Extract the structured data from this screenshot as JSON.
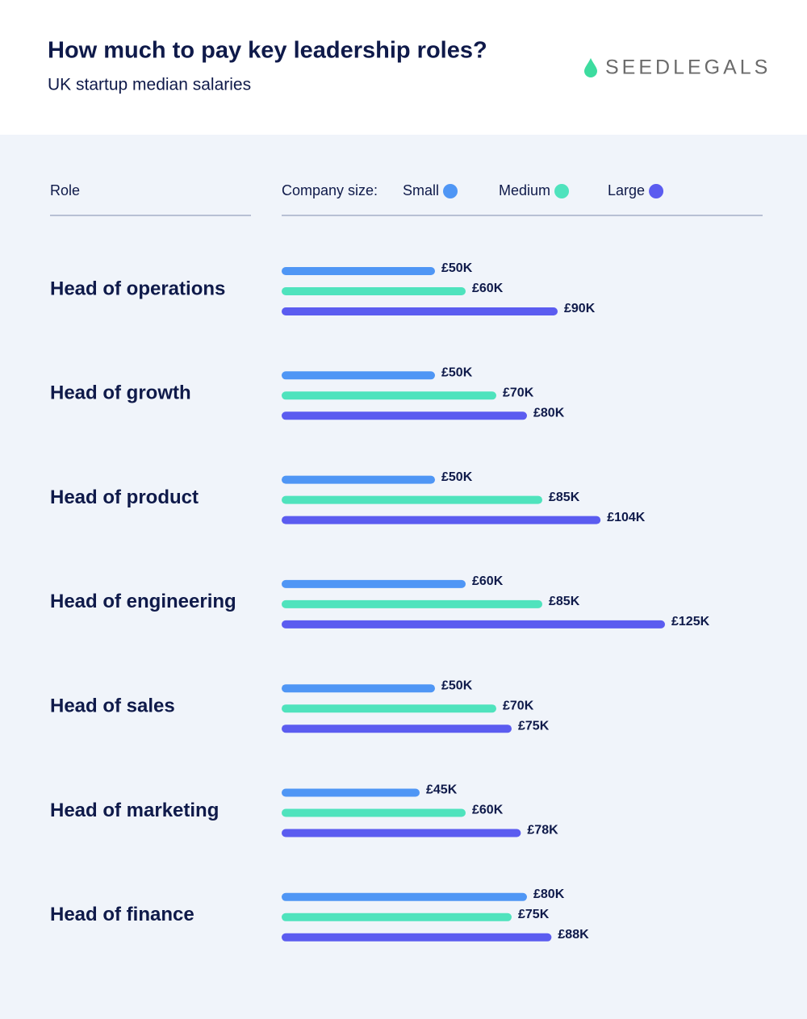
{
  "chart_data": {
    "type": "bar",
    "orientation": "horizontal",
    "title": "How much to pay key leadership roles?",
    "subtitle": "UK startup median salaries",
    "logo": "SEEDLEGALS",
    "category_header": "Role",
    "legend_title": "Company size:",
    "categories": [
      "Head of operations",
      "Head of growth",
      "Head of product",
      "Head of engineering",
      "Head of sales",
      "Head of marketing",
      "Head of finance"
    ],
    "series": [
      {
        "name": "Small",
        "color": "#4f96f5",
        "values": [
          50,
          50,
          50,
          60,
          50,
          45,
          80
        ],
        "value_labels": [
          "£50K",
          "£50K",
          "£50K",
          "£60K",
          "£50K",
          "£45K",
          "£80K"
        ]
      },
      {
        "name": "Medium",
        "color": "#4fe3bd",
        "values": [
          60,
          70,
          85,
          85,
          70,
          60,
          75
        ],
        "value_labels": [
          "£60K",
          "£70K",
          "£85K",
          "£85K",
          "£70K",
          "£60K",
          "£75K"
        ]
      },
      {
        "name": "Large",
        "color": "#5b5cf0",
        "values": [
          90,
          80,
          104,
          125,
          75,
          78,
          88
        ],
        "value_labels": [
          "£90K",
          "£80K",
          "£104K",
          "£125K",
          "£75K",
          "£78K",
          "£88K"
        ]
      }
    ]
  }
}
